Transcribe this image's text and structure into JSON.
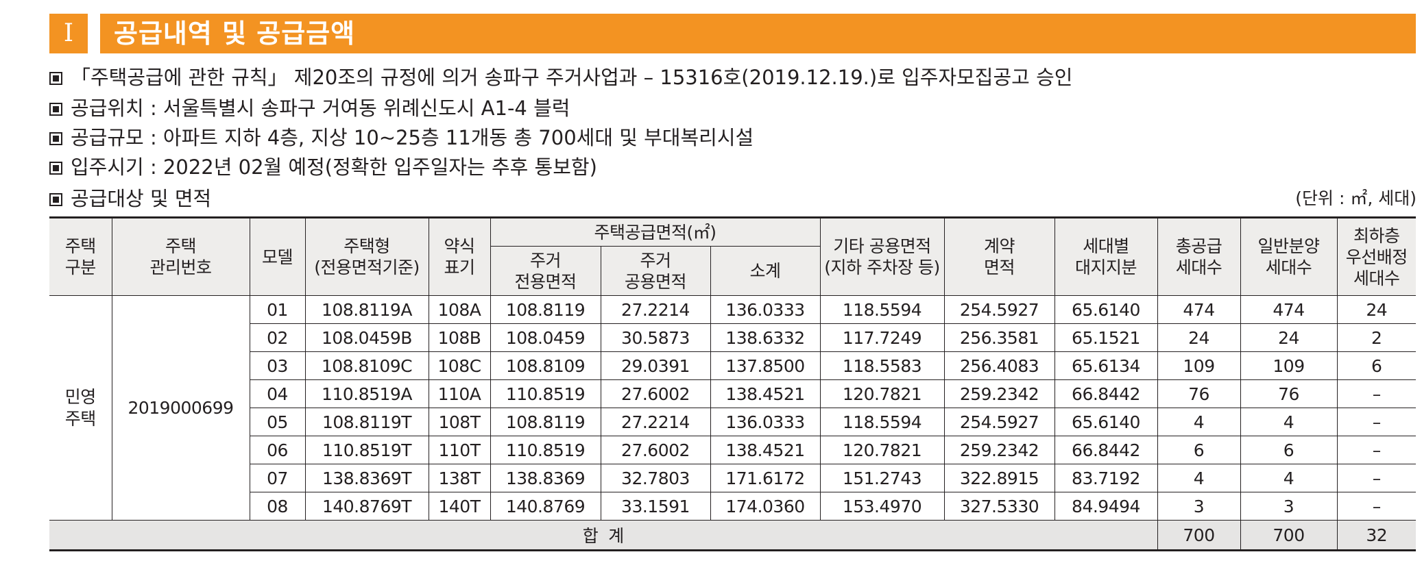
{
  "section": {
    "numeral": "Ⅰ",
    "title": "공급내역 및 공급금액"
  },
  "info_lines": [
    "「주택공급에 관한 규칙」 제20조의 규정에 의거 송파구 주거사업과 – 15316호(2019.12.19.)로 입주자모집공고 승인",
    "공급위치 : 서울특별시 송파구 거여동 위례신도시 A1-4 블럭",
    "공급규모 : 아파트 지하 4층, 지상 10~25층 11개동 총 700세대 및 부대복리시설",
    "입주시기 : 2022년 02월 예정(정확한 입주일자는 추후 통보함)",
    "공급대상 및 면적"
  ],
  "unit_note": "(단위 : ㎡, 세대)",
  "table": {
    "headers": {
      "housing_type": "주택\n구분",
      "mgmt_no": "주택\n관리번호",
      "model": "모델",
      "house_type": "주택형\n(전용면적기준)",
      "abbr": "약식\n표기",
      "supply_area_group": "주택공급면적(㎡)",
      "excl_area": "주거\n전용면적",
      "common_area": "주거\n공용면적",
      "subtotal": "소계",
      "other_common": "기타 공용면적\n(지하 주차장 등)",
      "contract_area": "계약\n면적",
      "land_share": "세대별\n대지지분",
      "total_units": "총공급\n세대수",
      "general_units": "일반분양\n세대수",
      "top_floor_priority": "최하층\n우선배정\n세대수"
    },
    "housing_type_value": "민영\n주택",
    "mgmt_no_value": "2019000699",
    "rows": [
      {
        "model": "01",
        "type": "108.8119A",
        "abbr": "108A",
        "excl": "108.8119",
        "common": "27.2214",
        "subtotal": "136.0333",
        "other": "118.5594",
        "contract": "254.5927",
        "land": "65.6140",
        "total": "474",
        "general": "474",
        "priority": "24"
      },
      {
        "model": "02",
        "type": "108.0459B",
        "abbr": "108B",
        "excl": "108.0459",
        "common": "30.5873",
        "subtotal": "138.6332",
        "other": "117.7249",
        "contract": "256.3581",
        "land": "65.1521",
        "total": "24",
        "general": "24",
        "priority": "2"
      },
      {
        "model": "03",
        "type": "108.8109C",
        "abbr": "108C",
        "excl": "108.8109",
        "common": "29.0391",
        "subtotal": "137.8500",
        "other": "118.5583",
        "contract": "256.4083",
        "land": "65.6134",
        "total": "109",
        "general": "109",
        "priority": "6"
      },
      {
        "model": "04",
        "type": "110.8519A",
        "abbr": "110A",
        "excl": "110.8519",
        "common": "27.6002",
        "subtotal": "138.4521",
        "other": "120.7821",
        "contract": "259.2342",
        "land": "66.8442",
        "total": "76",
        "general": "76",
        "priority": "–"
      },
      {
        "model": "05",
        "type": "108.8119T",
        "abbr": "108T",
        "excl": "108.8119",
        "common": "27.2214",
        "subtotal": "136.0333",
        "other": "118.5594",
        "contract": "254.5927",
        "land": "65.6140",
        "total": "4",
        "general": "4",
        "priority": "–"
      },
      {
        "model": "06",
        "type": "110.8519T",
        "abbr": "110T",
        "excl": "110.8519",
        "common": "27.6002",
        "subtotal": "138.4521",
        "other": "120.7821",
        "contract": "259.2342",
        "land": "66.8442",
        "total": "6",
        "general": "6",
        "priority": "–"
      },
      {
        "model": "07",
        "type": "138.8369T",
        "abbr": "138T",
        "excl": "138.8369",
        "common": "32.7803",
        "subtotal": "171.6172",
        "other": "151.2743",
        "contract": "322.8915",
        "land": "83.7192",
        "total": "4",
        "general": "4",
        "priority": "–"
      },
      {
        "model": "08",
        "type": "140.8769T",
        "abbr": "140T",
        "excl": "140.8769",
        "common": "33.1591",
        "subtotal": "174.0360",
        "other": "153.4970",
        "contract": "327.5330",
        "land": "84.9494",
        "total": "3",
        "general": "3",
        "priority": "–"
      }
    ],
    "total_row": {
      "label": "합  계",
      "total": "700",
      "general": "700",
      "priority": "32"
    }
  },
  "colors": {
    "header_orange": "#f39322",
    "header_gray": "#eeedeb",
    "total_gray": "#e6e5e4"
  }
}
